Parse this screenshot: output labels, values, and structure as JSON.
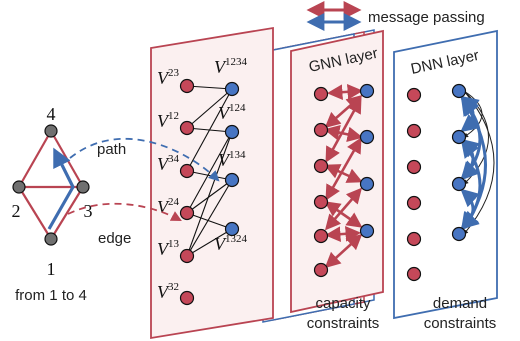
{
  "legend": {
    "label": "message passing"
  },
  "graph": {
    "nodes": [
      "4",
      "2",
      "3",
      "1"
    ],
    "caption": "from 1 to 4",
    "path_label": "path",
    "edge_label": "edge"
  },
  "hypergraph": {
    "left_labels": [
      {
        "base": "V",
        "sup": "23"
      },
      {
        "base": "V",
        "sup": "12"
      },
      {
        "base": "V",
        "sup": "34"
      },
      {
        "base": "V",
        "sup": "24"
      },
      {
        "base": "V",
        "sup": "13"
      },
      {
        "base": "V",
        "sup": "32"
      }
    ],
    "right_labels": [
      {
        "base": "V",
        "sup": "1234"
      },
      {
        "base": "V",
        "sup": "124"
      },
      {
        "base": "V",
        "sup": "134"
      },
      {
        "base": "V",
        "sup": "1324"
      }
    ]
  },
  "layers": {
    "gnn": {
      "title": "GNN layer",
      "caption_line1": "capacity",
      "caption_line2": "constraints"
    },
    "dnn": {
      "title": "DNN layer",
      "caption_line1": "demand",
      "caption_line2": "constraints"
    }
  },
  "colors": {
    "red": "#b94452",
    "blue": "#3f6db0",
    "node_red": "#c54859",
    "node_blue": "#4775c3",
    "node_gray": "#707070",
    "panel_fill": "#fbf0f0"
  }
}
